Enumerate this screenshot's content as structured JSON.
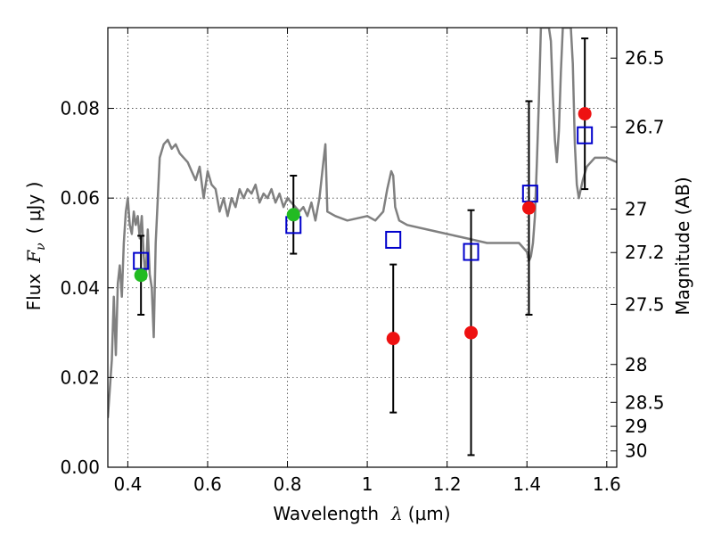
{
  "chart_data": {
    "type": "scatter",
    "title": "",
    "xlabel_text": "Wavelength",
    "xlabel_symbol": "λ",
    "xlabel_unit": "(μm)",
    "ylabel_text": "Flux",
    "ylabel_symbol": "F",
    "ylabel_subscript": "ν",
    "ylabel_unit": "( μJy )",
    "y2label": "Magnitude (AB)",
    "xlim": [
      0.35,
      1.625
    ],
    "ylim": [
      0.0,
      0.098
    ],
    "grid": true,
    "x_ticks": [
      {
        "value": 0.4,
        "label": "0.4"
      },
      {
        "value": 0.6,
        "label": "0.6"
      },
      {
        "value": 0.8,
        "label": "0.8"
      },
      {
        "value": 1.0,
        "label": "1"
      },
      {
        "value": 1.2,
        "label": "1.2"
      },
      {
        "value": 1.4,
        "label": "1.4"
      },
      {
        "value": 1.6,
        "label": "1.6"
      }
    ],
    "y_ticks": [
      {
        "value": 0.0,
        "label": "0.00"
      },
      {
        "value": 0.02,
        "label": "0.02"
      },
      {
        "value": 0.04,
        "label": "0.04"
      },
      {
        "value": 0.06,
        "label": "0.06"
      },
      {
        "value": 0.08,
        "label": "0.08"
      }
    ],
    "y2_ticks": [
      {
        "value": 26.5,
        "label": "26.5"
      },
      {
        "value": 26.7,
        "label": "26.7"
      },
      {
        "value": 27.0,
        "label": "27"
      },
      {
        "value": 27.2,
        "label": "27.2"
      },
      {
        "value": 27.5,
        "label": "27.5"
      },
      {
        "value": 28.0,
        "label": "28"
      },
      {
        "value": 28.5,
        "label": "28.5"
      },
      {
        "value": 29.0,
        "label": "29"
      },
      {
        "value": 30.0,
        "label": "30"
      }
    ],
    "colors": {
      "model_line": "#808080",
      "model_points": "#0000cc",
      "observed_points": "#ee1111",
      "optical_points": "#22bb22",
      "errorbar": "#000000"
    },
    "model_spectrum": {
      "x": [
        0.35,
        0.36,
        0.365,
        0.37,
        0.375,
        0.38,
        0.385,
        0.39,
        0.395,
        0.4,
        0.405,
        0.41,
        0.415,
        0.42,
        0.425,
        0.43,
        0.435,
        0.44,
        0.445,
        0.45,
        0.455,
        0.46,
        0.465,
        0.47,
        0.48,
        0.49,
        0.5,
        0.51,
        0.52,
        0.53,
        0.54,
        0.55,
        0.56,
        0.57,
        0.58,
        0.59,
        0.6,
        0.61,
        0.62,
        0.63,
        0.64,
        0.65,
        0.66,
        0.67,
        0.68,
        0.69,
        0.7,
        0.71,
        0.72,
        0.73,
        0.74,
        0.75,
        0.76,
        0.77,
        0.78,
        0.79,
        0.8,
        0.81,
        0.82,
        0.83,
        0.84,
        0.85,
        0.86,
        0.87,
        0.88,
        0.89,
        0.895,
        0.9,
        0.92,
        0.95,
        1.0,
        1.02,
        1.04,
        1.05,
        1.06,
        1.065,
        1.07,
        1.08,
        1.1,
        1.15,
        1.2,
        1.25,
        1.3,
        1.35,
        1.38,
        1.39,
        1.4,
        1.405,
        1.41,
        1.415,
        1.42,
        1.425,
        1.43,
        1.435,
        1.44,
        1.445,
        1.45,
        1.455,
        1.46,
        1.465,
        1.47,
        1.475,
        1.48,
        1.485,
        1.49,
        1.495,
        1.5,
        1.505,
        1.51,
        1.515,
        1.52,
        1.525,
        1.53,
        1.54,
        1.55,
        1.56,
        1.57,
        1.58,
        1.59,
        1.6,
        1.625
      ],
      "y": [
        0.011,
        0.024,
        0.038,
        0.025,
        0.041,
        0.045,
        0.038,
        0.05,
        0.057,
        0.06,
        0.054,
        0.052,
        0.057,
        0.054,
        0.056,
        0.051,
        0.056,
        0.047,
        0.042,
        0.053,
        0.043,
        0.04,
        0.029,
        0.05,
        0.069,
        0.072,
        0.073,
        0.071,
        0.072,
        0.07,
        0.069,
        0.068,
        0.066,
        0.064,
        0.067,
        0.06,
        0.066,
        0.063,
        0.062,
        0.057,
        0.06,
        0.056,
        0.06,
        0.058,
        0.062,
        0.06,
        0.062,
        0.061,
        0.063,
        0.059,
        0.061,
        0.06,
        0.062,
        0.059,
        0.061,
        0.058,
        0.06,
        0.059,
        0.058,
        0.057,
        0.058,
        0.056,
        0.059,
        0.055,
        0.06,
        0.068,
        0.072,
        0.057,
        0.056,
        0.055,
        0.056,
        0.055,
        0.057,
        0.062,
        0.066,
        0.065,
        0.058,
        0.055,
        0.054,
        0.053,
        0.052,
        0.051,
        0.05,
        0.05,
        0.05,
        0.049,
        0.048,
        0.046,
        0.047,
        0.05,
        0.056,
        0.068,
        0.082,
        0.098,
        0.098,
        0.098,
        0.098,
        0.098,
        0.095,
        0.083,
        0.073,
        0.068,
        0.075,
        0.088,
        0.098,
        0.098,
        0.098,
        0.098,
        0.098,
        0.09,
        0.072,
        0.063,
        0.06,
        0.064,
        0.067,
        0.068,
        0.069,
        0.069,
        0.069,
        0.069,
        0.068
      ]
    },
    "series": [
      {
        "marker": "square",
        "color": "#0000cc",
        "x": [
          0.433,
          0.815,
          1.065,
          1.26,
          1.408,
          1.545
        ],
        "y": [
          0.046,
          0.054,
          0.0507,
          0.048,
          0.061,
          0.074
        ]
      },
      {
        "marker": "circle",
        "color": "#ee1111",
        "x": [
          1.065,
          1.26,
          1.405,
          1.545
        ],
        "y": [
          0.0287,
          0.03,
          0.0578,
          0.0788
        ],
        "yerr_low": [
          0.0165,
          0.0273,
          0.0238,
          0.0168
        ],
        "yerr_high": [
          0.0165,
          0.0273,
          0.0238,
          0.0168
        ]
      },
      {
        "marker": "circle",
        "color": "#22bb22",
        "x": [
          0.433,
          0.815
        ],
        "y": [
          0.0428,
          0.0563
        ],
        "yerr_low": [
          0.0088,
          0.0087
        ],
        "yerr_high": [
          0.0088,
          0.0087
        ]
      }
    ]
  }
}
